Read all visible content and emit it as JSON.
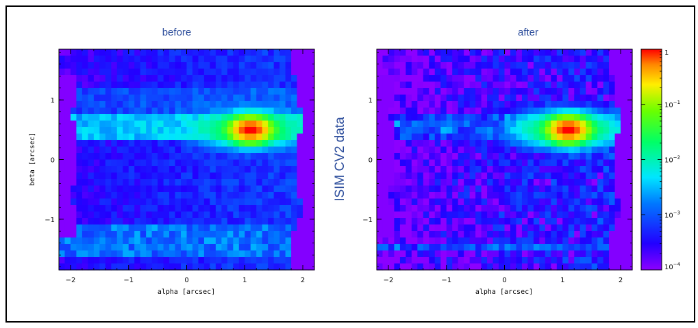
{
  "side_label": "ISIM CV2 data",
  "chart_data": [
    {
      "type": "heatmap",
      "title": "before",
      "xlabel": "alpha [arcsec]",
      "ylabel": "beta [arcsec]",
      "xlim": [
        -2.2,
        2.2
      ],
      "ylim": [
        -1.85,
        1.85
      ],
      "xticks": [
        -2,
        -1,
        0,
        1,
        2
      ],
      "yticks": [
        -1,
        0,
        1
      ],
      "xticklabels": [
        "−2",
        "−1",
        "0",
        "1",
        "2"
      ],
      "yticklabels": [
        "−1",
        "0",
        "1"
      ],
      "peak": {
        "x": 1.1,
        "y": 0.5,
        "value": 1
      }
    },
    {
      "type": "heatmap",
      "title": "after",
      "xlabel": "alpha [arcsec]",
      "ylabel": "",
      "xlim": [
        -2.2,
        2.2
      ],
      "ylim": [
        -1.85,
        1.85
      ],
      "xticks": [
        -2,
        -1,
        0,
        1,
        2
      ],
      "yticks": [
        -1,
        0,
        1
      ],
      "xticklabels": [
        "−2",
        "−1",
        "0",
        "1",
        "2"
      ],
      "yticklabels": [
        "−1",
        "0",
        "1"
      ],
      "peak": {
        "x": 1.1,
        "y": 0.5,
        "value": 1
      }
    }
  ],
  "colorbar": {
    "scale": "log",
    "range": [
      0.0001,
      1
    ],
    "labels": [
      {
        "base": "1",
        "exp": "",
        "value": 1
      },
      {
        "base": "10",
        "exp": "−1",
        "value": 0.1
      },
      {
        "base": "10",
        "exp": "−2",
        "value": 0.01
      },
      {
        "base": "10",
        "exp": "−3",
        "value": 0.001
      },
      {
        "base": "10",
        "exp": "−4",
        "value": 0.0001
      }
    ]
  }
}
